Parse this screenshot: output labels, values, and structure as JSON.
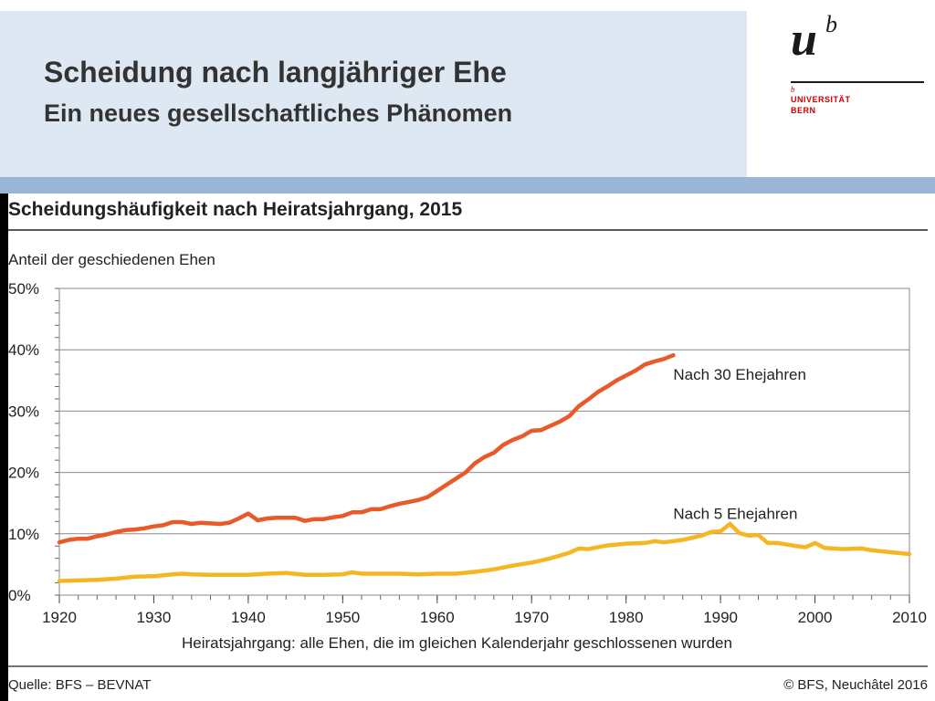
{
  "slide": {
    "title": "Scheidung nach langjähriger Ehe",
    "subtitle": "Ein neues gesellschaftliches Phänomen"
  },
  "logo": {
    "u": "u",
    "b": "b",
    "small_b": "b",
    "line1": "UNIVERSITÄT",
    "line2": "BERN"
  },
  "colors": {
    "header_band": "#dde8f3",
    "blue_bar": "#9ab6d6",
    "series_30": "#e85a2a",
    "series_5": "#f5b623",
    "grid": "#8a8a8a"
  },
  "chart_data": {
    "type": "line",
    "title": "Scheidungshäufigkeit nach Heiratsjahrgang, 2015",
    "ylabel": "Anteil der geschiedenen Ehen",
    "xlabel": "Heiratsjahrgang: alle Ehen, die im gleichen Kalenderjahr geschlossenen wurden",
    "xlim": [
      1920,
      2010
    ],
    "ylim": [
      0,
      50
    ],
    "x_ticks": [
      "1920",
      "1930",
      "1940",
      "1950",
      "1960",
      "1970",
      "1980",
      "1990",
      "2000",
      "2010"
    ],
    "y_ticks": [
      "0%",
      "10%",
      "20%",
      "30%",
      "40%",
      "50%"
    ],
    "grid": true,
    "source": "Quelle: BFS – BEVNAT",
    "copyright": "© BFS, Neuchâtel 2016",
    "series": [
      {
        "name": "Nach 30 Ehejahren",
        "color": "#e85a2a",
        "label_anchor": [
          1985,
          36
        ],
        "points": [
          [
            1920,
            8.6
          ],
          [
            1921,
            9.0
          ],
          [
            1922,
            9.2
          ],
          [
            1923,
            9.2
          ],
          [
            1924,
            9.6
          ],
          [
            1925,
            9.9
          ],
          [
            1926,
            10.3
          ],
          [
            1927,
            10.6
          ],
          [
            1928,
            10.7
          ],
          [
            1929,
            10.9
          ],
          [
            1930,
            11.2
          ],
          [
            1931,
            11.4
          ],
          [
            1932,
            11.9
          ],
          [
            1933,
            11.9
          ],
          [
            1934,
            11.6
          ],
          [
            1935,
            11.8
          ],
          [
            1936,
            11.7
          ],
          [
            1937,
            11.6
          ],
          [
            1938,
            11.8
          ],
          [
            1939,
            12.5
          ],
          [
            1940,
            13.3
          ],
          [
            1941,
            12.2
          ],
          [
            1942,
            12.5
          ],
          [
            1943,
            12.6
          ],
          [
            1944,
            12.6
          ],
          [
            1945,
            12.6
          ],
          [
            1946,
            12.1
          ],
          [
            1947,
            12.4
          ],
          [
            1948,
            12.4
          ],
          [
            1949,
            12.7
          ],
          [
            1950,
            12.9
          ],
          [
            1951,
            13.5
          ],
          [
            1952,
            13.5
          ],
          [
            1953,
            14.0
          ],
          [
            1954,
            14.0
          ],
          [
            1955,
            14.5
          ],
          [
            1956,
            14.9
          ],
          [
            1957,
            15.2
          ],
          [
            1958,
            15.5
          ],
          [
            1959,
            16.0
          ],
          [
            1960,
            17.0
          ],
          [
            1961,
            18.0
          ],
          [
            1962,
            19.0
          ],
          [
            1963,
            20.0
          ],
          [
            1964,
            21.5
          ],
          [
            1965,
            22.5
          ],
          [
            1966,
            23.2
          ],
          [
            1967,
            24.5
          ],
          [
            1968,
            25.3
          ],
          [
            1969,
            25.9
          ],
          [
            1970,
            26.8
          ],
          [
            1971,
            26.9
          ],
          [
            1972,
            27.6
          ],
          [
            1973,
            28.3
          ],
          [
            1974,
            29.2
          ],
          [
            1975,
            30.8
          ],
          [
            1976,
            31.9
          ],
          [
            1977,
            33.1
          ],
          [
            1978,
            34.0
          ],
          [
            1979,
            35.0
          ],
          [
            1980,
            35.8
          ],
          [
            1981,
            36.6
          ],
          [
            1982,
            37.6
          ],
          [
            1983,
            38.1
          ],
          [
            1984,
            38.5
          ],
          [
            1985,
            39.1
          ]
        ]
      },
      {
        "name": "Nach 5 Ehejahren",
        "color": "#f5b623",
        "label_anchor": [
          1985,
          13.3
        ],
        "points": [
          [
            1920,
            2.3
          ],
          [
            1922,
            2.4
          ],
          [
            1924,
            2.5
          ],
          [
            1926,
            2.7
          ],
          [
            1928,
            3.0
          ],
          [
            1930,
            3.1
          ],
          [
            1932,
            3.4
          ],
          [
            1933,
            3.5
          ],
          [
            1934,
            3.4
          ],
          [
            1936,
            3.3
          ],
          [
            1938,
            3.3
          ],
          [
            1940,
            3.3
          ],
          [
            1942,
            3.5
          ],
          [
            1944,
            3.6
          ],
          [
            1946,
            3.3
          ],
          [
            1948,
            3.3
          ],
          [
            1950,
            3.4
          ],
          [
            1951,
            3.7
          ],
          [
            1952,
            3.5
          ],
          [
            1954,
            3.5
          ],
          [
            1956,
            3.5
          ],
          [
            1958,
            3.4
          ],
          [
            1960,
            3.5
          ],
          [
            1962,
            3.5
          ],
          [
            1964,
            3.8
          ],
          [
            1966,
            4.2
          ],
          [
            1968,
            4.8
          ],
          [
            1970,
            5.3
          ],
          [
            1972,
            6.0
          ],
          [
            1974,
            6.9
          ],
          [
            1975,
            7.6
          ],
          [
            1976,
            7.5
          ],
          [
            1978,
            8.1
          ],
          [
            1980,
            8.4
          ],
          [
            1982,
            8.5
          ],
          [
            1983,
            8.8
          ],
          [
            1984,
            8.6
          ],
          [
            1986,
            9.0
          ],
          [
            1988,
            9.7
          ],
          [
            1989,
            10.3
          ],
          [
            1990,
            10.4
          ],
          [
            1991,
            11.6
          ],
          [
            1992,
            10.1
          ],
          [
            1993,
            9.7
          ],
          [
            1994,
            9.8
          ],
          [
            1995,
            8.5
          ],
          [
            1996,
            8.5
          ],
          [
            1998,
            8.0
          ],
          [
            1999,
            7.8
          ],
          [
            2000,
            8.5
          ],
          [
            2001,
            7.7
          ],
          [
            2003,
            7.5
          ],
          [
            2005,
            7.6
          ],
          [
            2006,
            7.3
          ],
          [
            2008,
            7.0
          ],
          [
            2010,
            6.7
          ]
        ]
      }
    ]
  }
}
